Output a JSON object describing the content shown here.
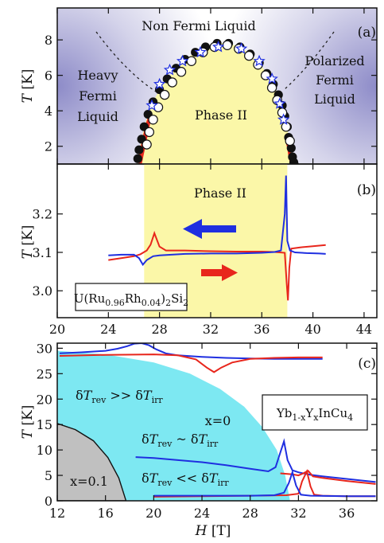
{
  "panels": {
    "a": {
      "label": "(a)",
      "ylabel_sym": "T",
      "ylabel_unit": "[K]",
      "yticks": [
        "2",
        "4",
        "6",
        "8"
      ],
      "regions": {
        "top": "Non Fermi Liquid",
        "left": [
          "Heavy",
          "Fermi",
          "Liquid"
        ],
        "right": [
          "Polarized",
          "Fermi",
          "Liquid"
        ],
        "center": "Phase II"
      }
    },
    "b": {
      "label": "(b)",
      "ylabel_sym": "T",
      "ylabel_unit": "[K]",
      "yticks": [
        "3.0",
        "3.1",
        "3.2"
      ],
      "xticks": [
        "20",
        "24",
        "28",
        "32",
        "36",
        "40",
        "44"
      ],
      "phase_label": "Phase II",
      "compound": "U(Ru0.96Rh0.04)2Si2"
    },
    "c": {
      "label": "(c)",
      "ylabel_sym": "T",
      "ylabel_unit": "[K]",
      "yticks": [
        "0",
        "5",
        "10",
        "15",
        "20",
        "25",
        "30"
      ],
      "xticks": [
        "12",
        "16",
        "20",
        "24",
        "28",
        "32",
        "36"
      ],
      "xlabel_sym": "H",
      "xlabel_unit": "[T]",
      "compound": "Yb1-xYxInCu4",
      "x0": "x=0",
      "x01": "x=0.1",
      "ann1": "δTrev >> δTirr",
      "ann2": "δTrev ~ δTirr",
      "ann3": "δTrev << δTirr"
    }
  },
  "chart_data": [
    {
      "type": "scatter",
      "panel": "a",
      "xlim": [
        20,
        45
      ],
      "ylim": [
        1,
        9.8
      ],
      "ylabel": "T [K]",
      "series": [
        {
          "name": "",
          "marker": "filled-circle",
          "x": [
            26.3,
            26.4,
            26.6,
            26.8,
            27.1,
            27.5,
            28.0,
            28.6,
            29.3,
            30.0,
            30.8,
            31.6,
            32.5,
            33.4,
            34.3,
            35.1,
            35.8,
            36.4,
            36.9,
            37.3,
            37.6,
            37.8,
            38.0,
            38.1,
            38.3,
            38.4,
            38.5,
            38.6
          ],
          "y": [
            1.3,
            1.8,
            2.4,
            3.1,
            3.8,
            4.5,
            5.2,
            5.8,
            6.4,
            6.9,
            7.3,
            7.6,
            7.8,
            7.8,
            7.6,
            7.2,
            6.7,
            6.1,
            5.5,
            4.9,
            4.3,
            3.7,
            3.1,
            2.5,
            1.9,
            1.4,
            1.1,
            0.9
          ]
        },
        {
          "name": "",
          "marker": "open-circle",
          "x": [
            27.0,
            27.2,
            27.5,
            27.9,
            28.4,
            29.0,
            29.7,
            30.5,
            31.4,
            32.3,
            33.3,
            34.2,
            35.0,
            35.7,
            36.3,
            36.8,
            37.2,
            37.6,
            37.9,
            38.2
          ],
          "y": [
            2.1,
            2.8,
            3.5,
            4.2,
            4.9,
            5.6,
            6.2,
            6.8,
            7.3,
            7.6,
            7.7,
            7.5,
            7.1,
            6.6,
            6.0,
            5.3,
            4.6,
            3.9,
            3.1,
            2.3
          ]
        },
        {
          "name": "",
          "marker": "open-star",
          "x": [
            27.4,
            28.0,
            28.8,
            29.8,
            31.2,
            32.6,
            34.4,
            35.8,
            36.8,
            37.4,
            37.7
          ],
          "y": [
            4.3,
            5.5,
            6.3,
            6.8,
            7.3,
            7.6,
            7.5,
            6.8,
            5.8,
            4.4,
            3.5
          ]
        }
      ]
    },
    {
      "type": "line",
      "panel": "b",
      "xlim": [
        20,
        45
      ],
      "ylim": [
        2.93,
        3.33
      ],
      "ylabel": "T [K]",
      "shaded_region_x": [
        26.8,
        38.0
      ],
      "series": [
        {
          "name": "",
          "color": "#e8261c",
          "x": [
            24.0,
            25.0,
            26.0,
            26.5,
            27.0,
            27.3,
            27.6,
            28.0,
            28.5,
            30,
            32,
            34,
            36,
            37,
            37.8,
            37.95,
            38.05,
            38.15,
            38.3,
            39,
            40,
            41
          ],
          "y": [
            3.08,
            3.085,
            3.09,
            3.095,
            3.105,
            3.12,
            3.15,
            3.115,
            3.105,
            3.105,
            3.103,
            3.102,
            3.102,
            3.101,
            3.099,
            3.02,
            2.975,
            3.06,
            3.11,
            3.113,
            3.116,
            3.119
          ]
        },
        {
          "name": "",
          "color": "#1f2fe0",
          "x": [
            24.0,
            25.0,
            26.0,
            26.4,
            26.7,
            27.0,
            27.5,
            28.0,
            30,
            32,
            34,
            36,
            37,
            37.5,
            37.8,
            37.9,
            38.0,
            38.2,
            38.6,
            39.5,
            40.5,
            41
          ],
          "y": [
            3.092,
            3.094,
            3.094,
            3.085,
            3.068,
            3.08,
            3.09,
            3.092,
            3.096,
            3.097,
            3.097,
            3.099,
            3.101,
            3.105,
            3.2,
            3.3,
            3.13,
            3.105,
            3.1,
            3.098,
            3.097,
            3.096
          ]
        }
      ]
    },
    {
      "type": "line",
      "panel": "c",
      "xlim": [
        12,
        38.5
      ],
      "ylim": [
        0,
        31
      ],
      "xlabel": "H [T]",
      "ylabel": "T [K]",
      "regions": [
        {
          "name": "x=0",
          "color": "#7de8f2"
        },
        {
          "name": "x=0.1",
          "color": "#c0c0c0"
        }
      ],
      "series": [
        {
          "name": "",
          "color": "#1f2fe0",
          "x": [
            12.2,
            14,
            16,
            17,
            17.8,
            18.4,
            19.0,
            19.6,
            20.2,
            21,
            22,
            24,
            26,
            28,
            30,
            32,
            34
          ],
          "y": [
            29.0,
            29.2,
            29.5,
            29.9,
            30.4,
            30.9,
            31.0,
            30.6,
            29.8,
            29.0,
            28.6,
            28.3,
            28.1,
            28.0,
            27.9,
            27.9,
            27.9
          ]
        },
        {
          "name": "",
          "color": "#e8261c",
          "x": [
            12.2,
            16,
            20,
            22,
            23.5,
            24.4,
            25.0,
            25.6,
            26.5,
            28,
            30,
            32,
            34
          ],
          "y": [
            28.5,
            28.7,
            28.8,
            28.6,
            27.8,
            26.2,
            25.3,
            26.2,
            27.2,
            27.9,
            28.1,
            28.2,
            28.2
          ]
        },
        {
          "name": "",
          "color": "#1f2fe0",
          "x": [
            18.5,
            20,
            22,
            24,
            26,
            28,
            29.5,
            30.1,
            30.5,
            30.8,
            31.1,
            31.5,
            32,
            33,
            34,
            36,
            38.4
          ],
          "y": [
            8.6,
            8.4,
            8.0,
            7.6,
            7.0,
            6.3,
            5.8,
            6.6,
            9.5,
            11.7,
            8.0,
            6.0,
            5.6,
            5.1,
            4.8,
            4.3,
            3.7
          ]
        },
        {
          "name": "",
          "color": "#e8261c",
          "x": [
            30.5,
            31,
            31.5,
            32,
            32.4,
            32.8,
            33.2,
            34,
            36,
            38.4
          ],
          "y": [
            5.4,
            5.3,
            5.2,
            5.0,
            5.4,
            5.9,
            4.8,
            4.5,
            3.9,
            3.3
          ]
        },
        {
          "name": "",
          "color": "#e8261c",
          "x": [
            20,
            24,
            28,
            31,
            32,
            32.3,
            32.7,
            33,
            33.3,
            34,
            36,
            38.4
          ],
          "y": [
            0.8,
            0.9,
            1.0,
            1.1,
            1.4,
            3.8,
            5.8,
            2.8,
            1.2,
            1.0,
            0.9,
            0.9
          ]
        },
        {
          "name": "",
          "color": "#1f2fe0",
          "x": [
            20,
            24,
            28,
            30,
            30.8,
            31.2,
            31.5,
            31.8,
            32.2,
            33,
            36,
            38.4
          ],
          "y": [
            1.0,
            1.0,
            1.0,
            1.1,
            1.6,
            3.5,
            5.6,
            3.0,
            1.2,
            1.0,
            0.9,
            0.9
          ]
        }
      ]
    }
  ]
}
